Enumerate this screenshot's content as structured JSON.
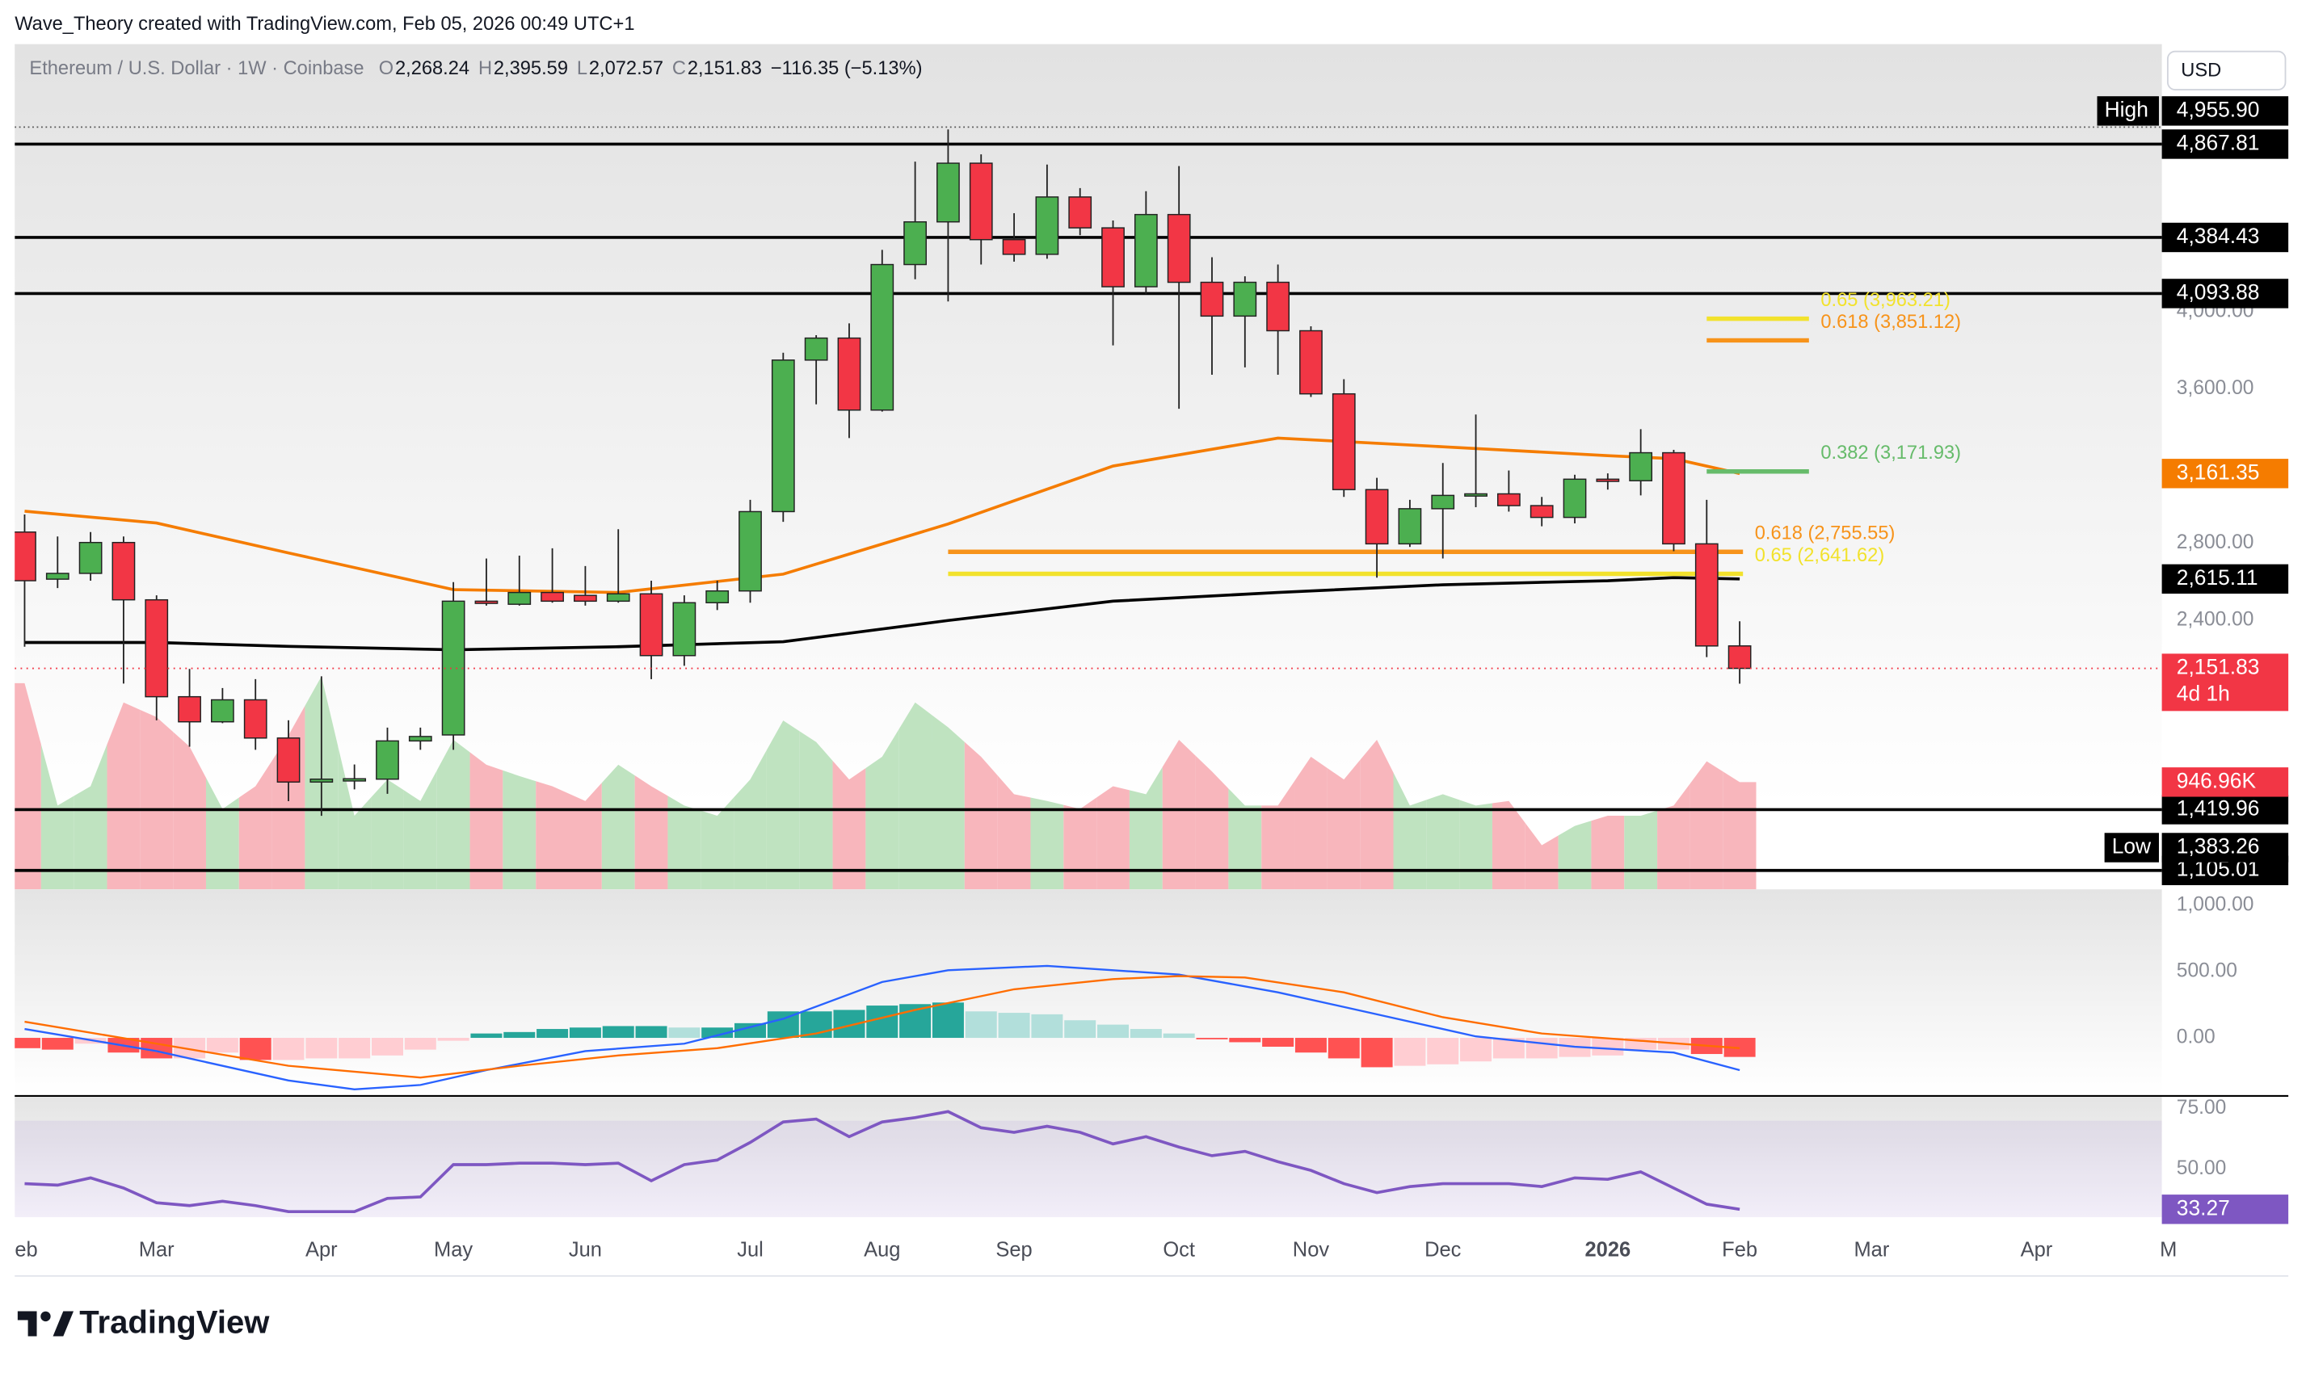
{
  "chart_data": {
    "type": "candlestick",
    "header": "Wave_Theory created with TradingView.com, Feb 05, 2026 00:49 UTC+1",
    "symbol": "Ethereum / U.S. Dollar · 1W · Coinbase",
    "ohlc_legend": [
      {
        "key": "O",
        "value": "2,268.24"
      },
      {
        "key": "H",
        "value": "2,395.59"
      },
      {
        "key": "L",
        "value": "2,072.57"
      },
      {
        "key": "C",
        "value": "2,151.83"
      }
    ],
    "change": "−116.35 (−5.13%)",
    "currency": "USD",
    "brand": "TradingView",
    "up_color": "#4caf50",
    "down_color": "#f23645",
    "xlim": [
      -0.3,
      64.8
    ],
    "xticks": [
      {
        "value": 0.05,
        "label": "eb"
      },
      {
        "value": 4,
        "label": "Mar"
      },
      {
        "value": 9,
        "label": "Apr"
      },
      {
        "value": 13,
        "label": "May"
      },
      {
        "value": 17,
        "label": "Jun"
      },
      {
        "value": 22,
        "label": "Jul"
      },
      {
        "value": 26,
        "label": "Aug"
      },
      {
        "value": 30,
        "label": "Sep"
      },
      {
        "value": 35,
        "label": "Oct"
      },
      {
        "value": 39,
        "label": "Nov"
      },
      {
        "value": 43,
        "label": "Dec"
      },
      {
        "value": 48,
        "label": "2026"
      },
      {
        "value": 52,
        "label": "Feb"
      },
      {
        "value": 56,
        "label": "Mar"
      },
      {
        "value": 61,
        "label": "Apr"
      },
      {
        "value": 65,
        "label": "M"
      }
    ],
    "ylim": [
      1007,
      5386
    ],
    "yticks": [
      {
        "value": 2400,
        "label": "2,400.00"
      },
      {
        "value": 2800,
        "label": "2,800.00"
      },
      {
        "value": 3600,
        "label": "3,600.00"
      },
      {
        "value": 4000,
        "label": "4,000.00"
      }
    ],
    "candles": {
      "open": [
        2858,
        2614,
        2644,
        2804,
        2507,
        2005,
        1875,
        1989,
        1791,
        1563,
        1578,
        1578,
        1776,
        1807,
        2500,
        2484,
        2545,
        2530,
        2500,
        2538,
        2218,
        2492,
        2553,
        2964,
        3749,
        3863,
        3490,
        4244,
        4465,
        4769,
        4373,
        4297,
        4594,
        4434,
        4129,
        4503,
        4152,
        3977,
        4152,
        3901,
        3574,
        3078,
        2797,
        2979,
        3048,
        3056,
        2995,
        2934,
        3132,
        3124,
        3269,
        2797,
        2268.24
      ],
      "high": [
        2949,
        2835,
        2858,
        2835,
        2530,
        2149,
        2050,
        2096,
        1883,
        2111,
        1654,
        1845,
        1845,
        2599,
        2721,
        2736,
        2774,
        2682,
        2873,
        2606,
        2530,
        2606,
        3025,
        3787,
        3878,
        3939,
        4320,
        4777,
        4944,
        4815,
        4510,
        4762,
        4640,
        4472,
        4624,
        4754,
        4282,
        4183,
        4244,
        3924,
        3650,
        3139,
        3025,
        3216,
        3467,
        3177,
        3040,
        3155,
        3162,
        3391,
        3284,
        3025,
        2395.59
      ],
      "low": [
        2264,
        2568,
        2606,
        2073,
        1883,
        1746,
        1868,
        1730,
        1464,
        1388,
        1525,
        1502,
        1730,
        1730,
        2477,
        2477,
        2492,
        2477,
        2492,
        2096,
        2165,
        2454,
        2492,
        2911,
        3520,
        3345,
        3482,
        4168,
        4053,
        4244,
        4259,
        4274,
        4396,
        3825,
        4091,
        3497,
        3673,
        3711,
        3673,
        3558,
        3040,
        2622,
        2781,
        2721,
        2987,
        2964,
        2888,
        2903,
        3078,
        3048,
        2759,
        2210,
        2072.57
      ],
      "close": [
        2606,
        2644,
        2804,
        2507,
        2005,
        1875,
        1989,
        1791,
        1563,
        1578,
        1580,
        1776,
        1799,
        2500,
        2492,
        2545,
        2500,
        2500,
        2538,
        2218,
        2492,
        2553,
        2964,
        3749,
        3863,
        3490,
        4244,
        4465,
        4769,
        4373,
        4297,
        4594,
        4434,
        4129,
        4503,
        4152,
        3977,
        4152,
        3901,
        3574,
        3078,
        2797,
        2979,
        3048,
        3056,
        2995,
        2934,
        3132,
        3124,
        3269,
        2797,
        2268,
        2151.83
      ]
    },
    "last_price_label": "2,151.83",
    "countdown": "4d 1h",
    "levels": [
      {
        "value": 4867.81,
        "label": "4,867.81"
      },
      {
        "value": 4384.43,
        "label": "4,384.43"
      },
      {
        "value": 4093.88,
        "label": "4,093.88"
      },
      {
        "value": 1419.96,
        "label": "1,419.96"
      },
      {
        "value": 1105.01,
        "label": "1,105.01"
      }
    ],
    "high": {
      "name": "High",
      "value": 4955.9,
      "label": "4,955.90"
    },
    "low": {
      "name": "Low",
      "value": 1383.26,
      "label": "1,383.26"
    },
    "fibs": [
      {
        "label": "0.618 (2,755.55)",
        "value": 2755.55,
        "x": [
          28,
          52.1
        ],
        "color": "#f7931a"
      },
      {
        "label": "0.65 (2,641.62)",
        "value": 2641.62,
        "x": [
          28,
          52.1
        ],
        "color": "#f2e22c"
      },
      {
        "label": "0.382 (3,171.93)",
        "value": 3171.93,
        "x": [
          51,
          54.1
        ],
        "color": "#66bb6a"
      },
      {
        "label": "0.618 (3,851.12)",
        "value": 3851.12,
        "x": [
          51,
          54.1
        ],
        "color": "#f7931a"
      },
      {
        "label": "0.65 (3,963.21)",
        "value": 3963.21,
        "x": [
          51,
          54.1
        ],
        "color": "#f2e22c"
      }
    ],
    "moving_averages": [
      {
        "color": "#f57c00",
        "x": [
          0,
          4,
          8,
          13,
          18,
          23,
          28,
          33,
          38,
          43,
          48,
          50,
          52
        ],
        "values": [
          2966,
          2905,
          2750,
          2560,
          2545,
          2640,
          2900,
          3200,
          3345,
          3300,
          3254,
          3238,
          3161.35
        ],
        "last_label": "3,161.35"
      },
      {
        "color": "#000000",
        "x": [
          0,
          4,
          8,
          13,
          18,
          23,
          28,
          33,
          38,
          43,
          48,
          50,
          52
        ],
        "values": [
          2286,
          2286,
          2266,
          2248,
          2264,
          2290,
          2400,
          2500,
          2545,
          2585,
          2606,
          2622,
          2615.11
        ],
        "last_label": "2,615.11"
      }
    ],
    "volume": {
      "vlim": [
        0,
        7460000
      ],
      "values": [
        1820000,
        740000,
        910000,
        1650000,
        1520000,
        1260000,
        710000,
        910000,
        1360000,
        1880000,
        650000,
        970000,
        780000,
        1320000,
        1100000,
        1000000,
        910000,
        780000,
        1100000,
        910000,
        740000,
        650000,
        970000,
        1490000,
        1300000,
        970000,
        1170000,
        1650000,
        1430000,
        1170000,
        840000,
        780000,
        710000,
        910000,
        840000,
        1320000,
        1040000,
        740000,
        740000,
        1170000,
        970000,
        1320000,
        740000,
        840000,
        740000,
        780000,
        390000,
        560000,
        650000,
        650000,
        740000,
        1130000,
        946960
      ],
      "last_label": "946.96K",
      "up_color": "#bfe3c0",
      "down_color": "#f8b6bc"
    },
    "macd": {
      "ylim": [
        -433,
        1122
      ],
      "yticks": [
        {
          "value": 0,
          "label": "0.00"
        },
        {
          "value": 500,
          "label": "500.00"
        },
        {
          "value": 1000,
          "label": "1,000.00"
        }
      ],
      "histogram": [
        -78,
        -89,
        -44,
        -111,
        -155,
        -155,
        -111,
        -167,
        -167,
        -155,
        -155,
        -133,
        -89,
        -22,
        33,
        44,
        67,
        78,
        89,
        89,
        78,
        78,
        111,
        200,
        200,
        211,
        244,
        255,
        267,
        200,
        189,
        178,
        133,
        100,
        67,
        33,
        -11,
        -33,
        -67,
        -111,
        -155,
        -222,
        -211,
        -200,
        -178,
        -155,
        -155,
        -144,
        -133,
        -89,
        -89,
        -122,
        -144
      ],
      "hist_colors": {
        "pos_up": "#26a69a",
        "pos_down": "#b2dfdb",
        "neg_down": "#ff5252",
        "neg_up": "#ffcdd2"
      },
      "macd": {
        "color": "#2962ff",
        "x": [
          0,
          4,
          8,
          10,
          12,
          14,
          17,
          20,
          23,
          26,
          28,
          31,
          33,
          35,
          38,
          41,
          44,
          47,
          50,
          52
        ],
        "values": [
          67,
          -100,
          -322,
          -389,
          -356,
          -244,
          -100,
          -44,
          144,
          422,
          511,
          544,
          511,
          478,
          344,
          178,
          11,
          -67,
          -111,
          -244
        ]
      },
      "signal": {
        "color": "#ff6d00",
        "x": [
          0,
          4,
          8,
          12,
          15,
          18,
          21,
          24,
          27,
          30,
          33,
          35,
          37,
          40,
          43,
          46,
          49,
          52
        ],
        "values": [
          122,
          -44,
          -211,
          -300,
          -211,
          -133,
          -78,
          33,
          211,
          367,
          444,
          467,
          456,
          344,
          156,
          33,
          -22,
          -78
        ]
      }
    },
    "rsi": {
      "ylim": [
        30,
        80
      ],
      "yticks": [
        {
          "value": 50,
          "label": "50.00"
        },
        {
          "value": 75,
          "label": "75.00"
        }
      ],
      "band": [
        30,
        70
      ],
      "color": "#7e57c2",
      "values": [
        43.9,
        43.3,
        46.3,
        42.1,
        36,
        34.8,
        36.6,
        34.8,
        32.3,
        32.3,
        32.3,
        37.8,
        38.4,
        51.8,
        51.8,
        52.4,
        52.4,
        51.8,
        52.4,
        45.1,
        51.8,
        53.7,
        61,
        69.5,
        70.7,
        63.4,
        69.5,
        71.3,
        73.8,
        67.1,
        65.2,
        67.7,
        65.2,
        60.4,
        63.4,
        59.1,
        55.5,
        57.3,
        53,
        49.4,
        43.9,
        40.2,
        42.7,
        43.9,
        43.9,
        43.9,
        42.7,
        46.3,
        45.7,
        48.8,
        42.1,
        35.4,
        33.27
      ],
      "last_label": "33.27"
    }
  }
}
